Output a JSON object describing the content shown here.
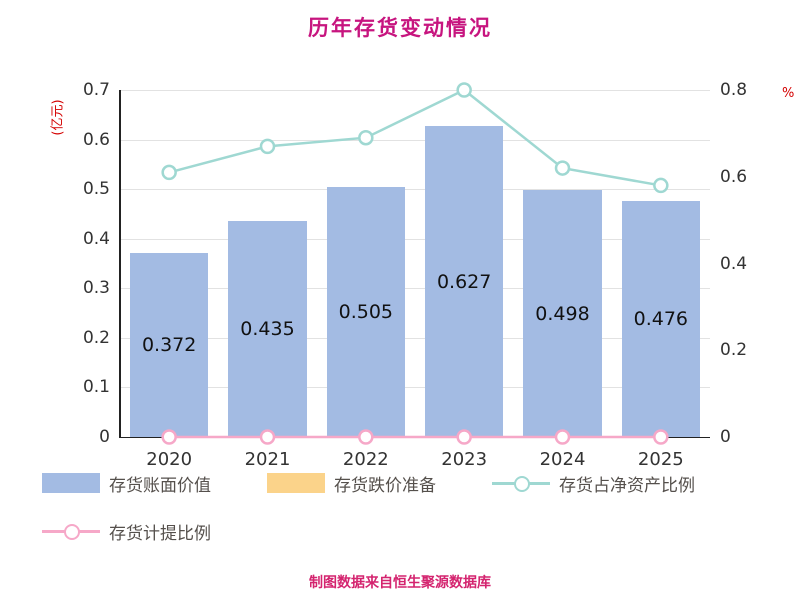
{
  "chart_data": {
    "type": "bar",
    "title": "历年存货变动情况",
    "categories": [
      "2020",
      "2021",
      "2022",
      "2023",
      "2024",
      "2025"
    ],
    "series": [
      {
        "name": "存货账面价值",
        "type": "bar",
        "axis": "left",
        "color": "#a3bbe3",
        "values": [
          0.372,
          0.435,
          0.505,
          0.627,
          0.498,
          0.476
        ]
      },
      {
        "name": "存货跌价准备",
        "type": "bar",
        "axis": "left",
        "color": "#fbd38a",
        "values": [
          0,
          0,
          0,
          0,
          0,
          0
        ]
      },
      {
        "name": "存货占净资产比例",
        "type": "line",
        "axis": "right",
        "color": "#9fd8d2",
        "values": [
          0.61,
          0.67,
          0.69,
          0.8,
          0.62,
          0.58
        ]
      },
      {
        "name": "存货计提比例",
        "type": "line",
        "axis": "right",
        "color": "#f6a8c8",
        "values": [
          0,
          0,
          0,
          0,
          0,
          0
        ]
      }
    ],
    "bar_labels": [
      "0.372",
      "0.435",
      "0.505",
      "0.627",
      "0.498",
      "0.476"
    ],
    "ylabel_left": "(亿元)",
    "ylabel_right": "%",
    "yaxis_left": {
      "min": 0,
      "max": 0.7,
      "ticks": [
        "0",
        "0.1",
        "0.2",
        "0.3",
        "0.4",
        "0.5",
        "0.6",
        "0.7"
      ]
    },
    "yaxis_right": {
      "min": 0,
      "max": 0.8,
      "ticks": [
        "0",
        "0.2",
        "0.4",
        "0.6",
        "0.8"
      ]
    },
    "grid": true,
    "legend_position": "bottom"
  },
  "footer": {
    "source_text": "制图数据来自恒生聚源数据库"
  }
}
